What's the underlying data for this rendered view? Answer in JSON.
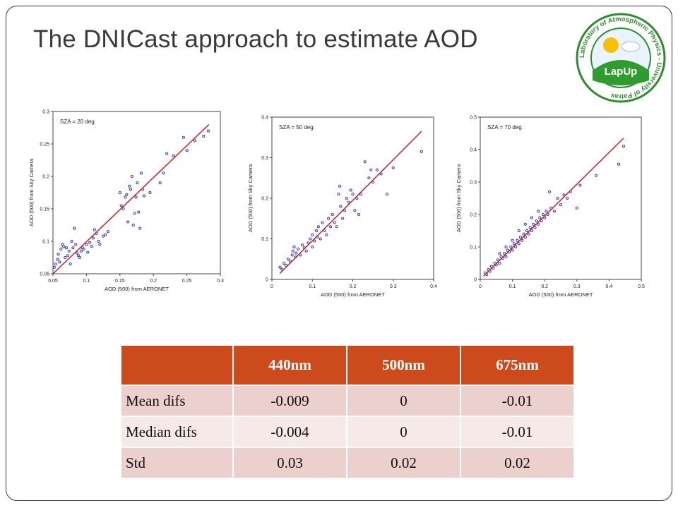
{
  "slide": {
    "title": "The DNICast approach to estimate AOD"
  },
  "logo": {
    "ring_text": "Laboratory of Atmospheric Physics - University of Patras",
    "badge_text": "LapUp",
    "colors": {
      "ring": "#2e8b2e",
      "sun": "#f5c000",
      "hill": "#2e9c2e",
      "sky": "#ffffff"
    }
  },
  "colors": {
    "points": "#1f2fd6",
    "fit_line": "#dd1b1b",
    "header": "#cc4a1c",
    "row_dark": "#ecd0cd",
    "row_light": "#f6e9e8"
  },
  "chart_data": [
    {
      "type": "scatter",
      "title": "SZA = 20 deg.",
      "xlabel": "AOD (500) from AERONET",
      "ylabel": "AOD (500) from Sky Camera",
      "xlim": [
        0.05,
        0.3
      ],
      "ylim": [
        0.05,
        0.3
      ],
      "xticks": [
        "0.05",
        "0.1",
        "0.15",
        "0.2",
        "0.25",
        "0.3"
      ],
      "yticks": [
        "0.05",
        "0.1",
        "0.15",
        "0.2",
        "0.25",
        "0.3"
      ],
      "fit_line": {
        "x": [
          0.05,
          0.283
        ],
        "y": [
          0.05,
          0.28
        ]
      },
      "points": [
        [
          0.052,
          0.06
        ],
        [
          0.054,
          0.065
        ],
        [
          0.057,
          0.072
        ],
        [
          0.06,
          0.068
        ],
        [
          0.058,
          0.08
        ],
        [
          0.062,
          0.088
        ],
        [
          0.064,
          0.095
        ],
        [
          0.066,
          0.092
        ],
        [
          0.068,
          0.075
        ],
        [
          0.07,
          0.09
        ],
        [
          0.072,
          0.078
        ],
        [
          0.074,
          0.085
        ],
        [
          0.076,
          0.065
        ],
        [
          0.078,
          0.1
        ],
        [
          0.08,
          0.09
        ],
        [
          0.082,
          0.12
        ],
        [
          0.084,
          0.095
        ],
        [
          0.086,
          0.082
        ],
        [
          0.088,
          0.078
        ],
        [
          0.09,
          0.075
        ],
        [
          0.092,
          0.085
        ],
        [
          0.094,
          0.09
        ],
        [
          0.096,
          0.088
        ],
        [
          0.1,
          0.095
        ],
        [
          0.102,
          0.083
        ],
        [
          0.105,
          0.098
        ],
        [
          0.108,
          0.092
        ],
        [
          0.11,
          0.105
        ],
        [
          0.112,
          0.118
        ],
        [
          0.115,
          0.112
        ],
        [
          0.118,
          0.1
        ],
        [
          0.12,
          0.095
        ],
        [
          0.125,
          0.108
        ],
        [
          0.128,
          0.11
        ],
        [
          0.132,
          0.115
        ],
        [
          0.15,
          0.175
        ],
        [
          0.152,
          0.155
        ],
        [
          0.155,
          0.15
        ],
        [
          0.158,
          0.168
        ],
        [
          0.16,
          0.172
        ],
        [
          0.162,
          0.13
        ],
        [
          0.164,
          0.185
        ],
        [
          0.166,
          0.18
        ],
        [
          0.168,
          0.2
        ],
        [
          0.17,
          0.125
        ],
        [
          0.172,
          0.143
        ],
        [
          0.174,
          0.168
        ],
        [
          0.176,
          0.19
        ],
        [
          0.178,
          0.145
        ],
        [
          0.18,
          0.12
        ],
        [
          0.182,
          0.205
        ],
        [
          0.184,
          0.18
        ],
        [
          0.186,
          0.17
        ],
        [
          0.195,
          0.175
        ],
        [
          0.21,
          0.19
        ],
        [
          0.215,
          0.205
        ],
        [
          0.22,
          0.235
        ],
        [
          0.23,
          0.232
        ],
        [
          0.245,
          0.26
        ],
        [
          0.25,
          0.24
        ],
        [
          0.262,
          0.255
        ],
        [
          0.275,
          0.262
        ],
        [
          0.282,
          0.27
        ]
      ]
    },
    {
      "type": "scatter",
      "title": "SZA = 50 deg.",
      "xlabel": "AOD (500) from AERONET",
      "ylabel": "AOD (500) from Sky Camera",
      "xlim": [
        0,
        0.4
      ],
      "ylim": [
        0,
        0.4
      ],
      "xticks": [
        "0",
        "0.1",
        "0.2",
        "0.3",
        "0.4"
      ],
      "yticks": [
        "0",
        "0.1",
        "0.2",
        "0.3",
        "0.4"
      ],
      "fit_line": {
        "x": [
          0.02,
          0.37
        ],
        "y": [
          0.015,
          0.365
        ]
      },
      "points": [
        [
          0.02,
          0.03
        ],
        [
          0.025,
          0.025
        ],
        [
          0.03,
          0.04
        ],
        [
          0.035,
          0.035
        ],
        [
          0.04,
          0.05
        ],
        [
          0.045,
          0.045
        ],
        [
          0.05,
          0.06
        ],
        [
          0.052,
          0.07
        ],
        [
          0.055,
          0.08
        ],
        [
          0.058,
          0.055
        ],
        [
          0.06,
          0.065
        ],
        [
          0.065,
          0.075
        ],
        [
          0.07,
          0.06
        ],
        [
          0.075,
          0.085
        ],
        [
          0.08,
          0.078
        ],
        [
          0.085,
          0.07
        ],
        [
          0.09,
          0.09
        ],
        [
          0.095,
          0.1
        ],
        [
          0.1,
          0.08
        ],
        [
          0.1,
          0.11
        ],
        [
          0.105,
          0.095
        ],
        [
          0.11,
          0.12
        ],
        [
          0.112,
          0.105
        ],
        [
          0.115,
          0.13
        ],
        [
          0.12,
          0.1
        ],
        [
          0.125,
          0.14
        ],
        [
          0.13,
          0.12
        ],
        [
          0.135,
          0.11
        ],
        [
          0.14,
          0.15
        ],
        [
          0.145,
          0.13
        ],
        [
          0.15,
          0.16
        ],
        [
          0.155,
          0.14
        ],
        [
          0.16,
          0.13
        ],
        [
          0.165,
          0.21
        ],
        [
          0.168,
          0.23
        ],
        [
          0.17,
          0.18
        ],
        [
          0.175,
          0.15
        ],
        [
          0.18,
          0.17
        ],
        [
          0.185,
          0.2
        ],
        [
          0.19,
          0.19
        ],
        [
          0.195,
          0.22
        ],
        [
          0.2,
          0.21
        ],
        [
          0.205,
          0.17
        ],
        [
          0.21,
          0.2
        ],
        [
          0.215,
          0.16
        ],
        [
          0.22,
          0.21
        ],
        [
          0.23,
          0.29
        ],
        [
          0.24,
          0.25
        ],
        [
          0.245,
          0.27
        ],
        [
          0.25,
          0.24
        ],
        [
          0.26,
          0.27
        ],
        [
          0.27,
          0.26
        ],
        [
          0.285,
          0.21
        ],
        [
          0.3,
          0.275
        ],
        [
          0.37,
          0.315
        ]
      ]
    },
    {
      "type": "scatter",
      "title": "SZA = 70 deg.",
      "xlabel": "AOD (500) from AERONET",
      "ylabel": "AOD (500) from Sky Camera",
      "xlim": [
        0,
        0.5
      ],
      "ylim": [
        0,
        0.5
      ],
      "xticks": [
        "0",
        "0.1",
        "0.2",
        "0.3",
        "0.4",
        "0.5"
      ],
      "yticks": [
        "0",
        "0.1",
        "0.2",
        "0.3",
        "0.4",
        "0.5"
      ],
      "fit_line": {
        "x": [
          0.01,
          0.445
        ],
        "y": [
          0.01,
          0.435
        ]
      },
      "points": [
        [
          0.015,
          0.02
        ],
        [
          0.02,
          0.015
        ],
        [
          0.025,
          0.03
        ],
        [
          0.03,
          0.025
        ],
        [
          0.035,
          0.04
        ],
        [
          0.04,
          0.035
        ],
        [
          0.045,
          0.05
        ],
        [
          0.05,
          0.045
        ],
        [
          0.055,
          0.06
        ],
        [
          0.06,
          0.05
        ],
        [
          0.065,
          0.07
        ],
        [
          0.07,
          0.065
        ],
        [
          0.075,
          0.08
        ],
        [
          0.08,
          0.07
        ],
        [
          0.085,
          0.09
        ],
        [
          0.09,
          0.085
        ],
        [
          0.095,
          0.1
        ],
        [
          0.1,
          0.09
        ],
        [
          0.105,
          0.11
        ],
        [
          0.11,
          0.1
        ],
        [
          0.115,
          0.12
        ],
        [
          0.12,
          0.11
        ],
        [
          0.125,
          0.13
        ],
        [
          0.13,
          0.12
        ],
        [
          0.135,
          0.14
        ],
        [
          0.14,
          0.13
        ],
        [
          0.145,
          0.15
        ],
        [
          0.15,
          0.14
        ],
        [
          0.155,
          0.16
        ],
        [
          0.16,
          0.15
        ],
        [
          0.165,
          0.17
        ],
        [
          0.17,
          0.16
        ],
        [
          0.175,
          0.18
        ],
        [
          0.18,
          0.17
        ],
        [
          0.185,
          0.19
        ],
        [
          0.19,
          0.18
        ],
        [
          0.195,
          0.2
        ],
        [
          0.2,
          0.19
        ],
        [
          0.205,
          0.21
        ],
        [
          0.21,
          0.2
        ],
        [
          0.215,
          0.27
        ],
        [
          0.22,
          0.22
        ],
        [
          0.23,
          0.21
        ],
        [
          0.24,
          0.25
        ],
        [
          0.25,
          0.23
        ],
        [
          0.26,
          0.26
        ],
        [
          0.27,
          0.25
        ],
        [
          0.28,
          0.27
        ],
        [
          0.3,
          0.22
        ],
        [
          0.31,
          0.29
        ],
        [
          0.36,
          0.32
        ],
        [
          0.43,
          0.355
        ],
        [
          0.445,
          0.41
        ],
        [
          0.1,
          0.12
        ],
        [
          0.08,
          0.1
        ],
        [
          0.06,
          0.08
        ],
        [
          0.12,
          0.15
        ],
        [
          0.14,
          0.17
        ],
        [
          0.16,
          0.19
        ],
        [
          0.18,
          0.21
        ]
      ]
    }
  ],
  "table": {
    "headers": [
      "",
      "440nm",
      "500nm",
      "675nm"
    ],
    "rows": [
      {
        "label": "Mean difs",
        "values": [
          "-0.009",
          "0",
          "-0.01"
        ]
      },
      {
        "label": "Median difs",
        "values": [
          "-0.004",
          "0",
          "-0.01"
        ]
      },
      {
        "label": "Std",
        "values": [
          "0.03",
          "0.02",
          "0.02"
        ]
      }
    ]
  }
}
